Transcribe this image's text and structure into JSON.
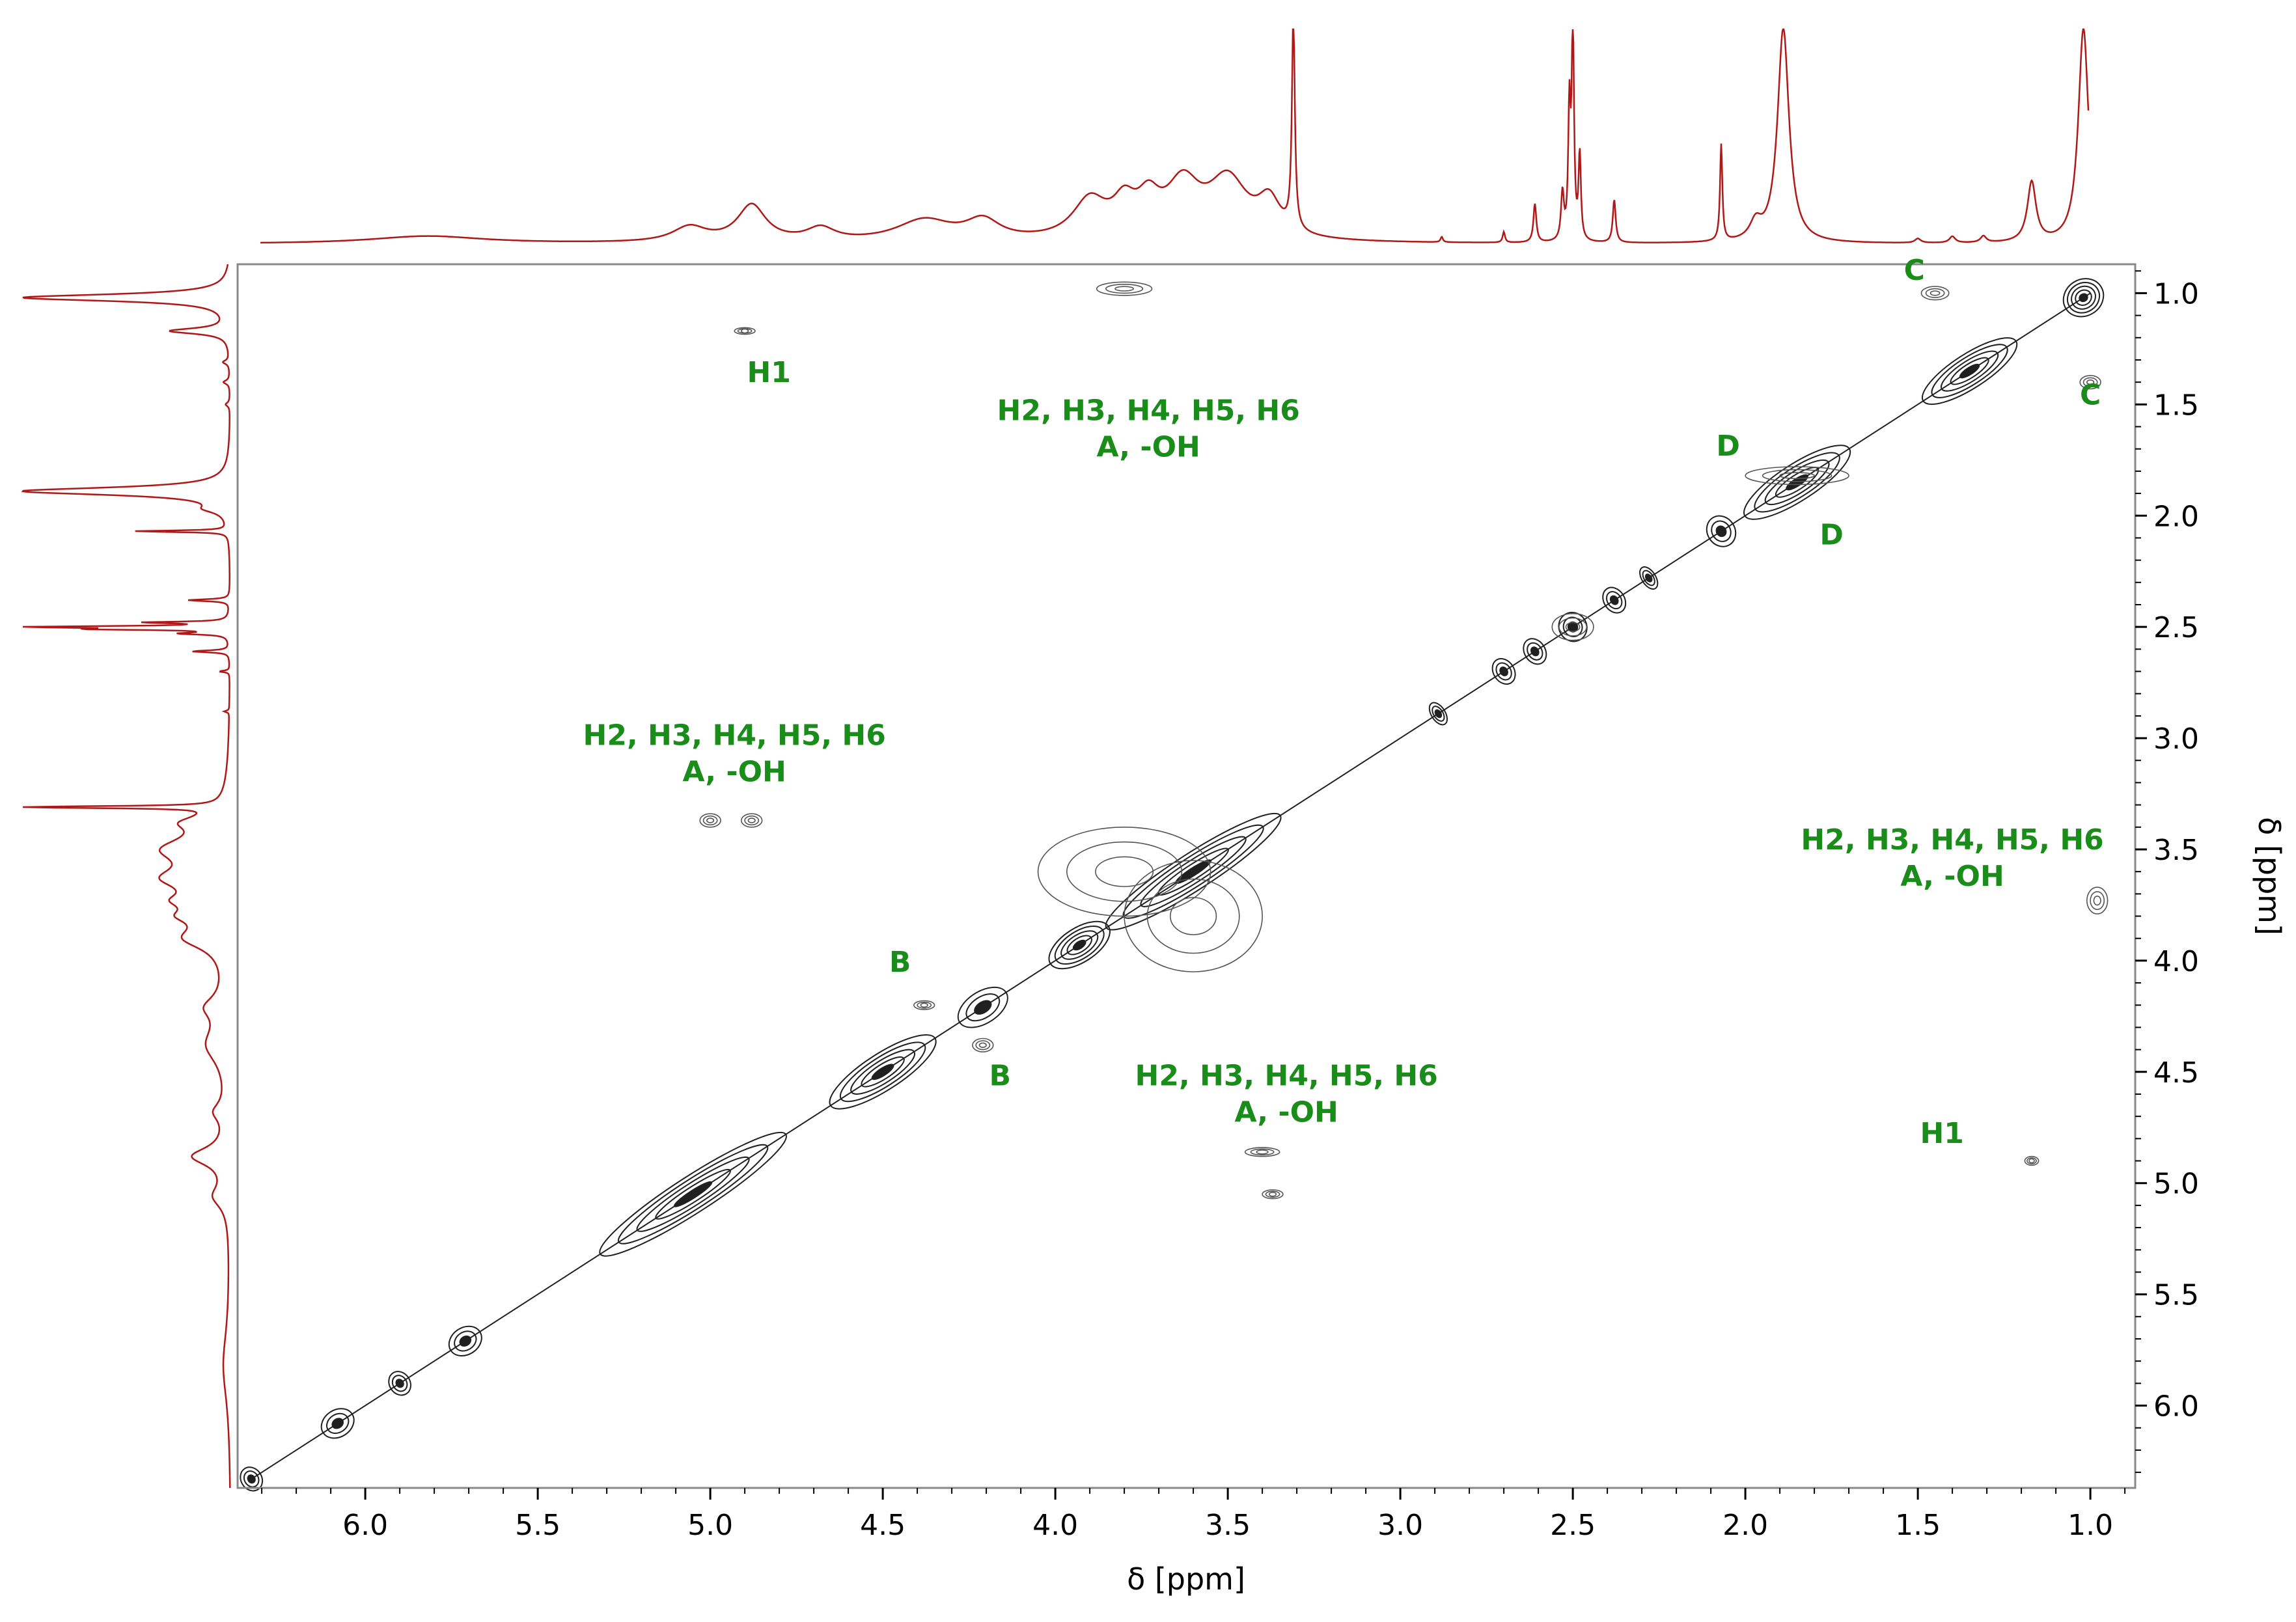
{
  "chart_data": {
    "type": "2D NMR contour plot (COSY-type) with 1D projections",
    "xlabel": "δ [ppm]",
    "ylabel": "δ [ppm]",
    "xlim": [
      6.37,
      0.87
    ],
    "ylim": [
      0.87,
      6.37
    ],
    "x_ticks": [
      "6.0",
      "5.5",
      "5.0",
      "4.5",
      "4.0",
      "3.5",
      "3.0",
      "2.5",
      "2.0",
      "1.5",
      "1.0"
    ],
    "y_ticks": [
      "1.0",
      "1.5",
      "2.0",
      "2.5",
      "3.0",
      "3.5",
      "4.0",
      "4.5",
      "5.0",
      "5.5",
      "6.0"
    ],
    "colors": {
      "projection": "#b01818",
      "contour": "#202020",
      "annotation": "#1a8c1a"
    },
    "diagonal_range": [
      6.33,
      1.0
    ],
    "diagonal_peaks": [
      {
        "ppm": 6.33,
        "w": 0.03,
        "s": 0.5
      },
      {
        "ppm": 6.08,
        "w": 0.05,
        "s": 0.6
      },
      {
        "ppm": 5.9,
        "w": 0.03,
        "s": 0.5
      },
      {
        "ppm": 5.71,
        "w": 0.05,
        "s": 0.6
      },
      {
        "ppm": 5.05,
        "w": 0.32,
        "s": 1.0
      },
      {
        "ppm": 4.5,
        "w": 0.18,
        "s": 1.0
      },
      {
        "ppm": 4.21,
        "w": 0.08,
        "s": 0.8
      },
      {
        "ppm": 3.93,
        "w": 0.1,
        "s": 0.9
      },
      {
        "ppm": 3.6,
        "w": 0.3,
        "s": 1.0
      },
      {
        "ppm": 2.89,
        "w": 0.02,
        "s": 0.5
      },
      {
        "ppm": 2.7,
        "w": 0.03,
        "s": 0.6
      },
      {
        "ppm": 2.61,
        "w": 0.03,
        "s": 0.6
      },
      {
        "ppm": 2.5,
        "w": 0.04,
        "s": 0.7
      },
      {
        "ppm": 2.38,
        "w": 0.03,
        "s": 0.6
      },
      {
        "ppm": 2.28,
        "w": 0.02,
        "s": 0.5
      },
      {
        "ppm": 2.07,
        "w": 0.04,
        "s": 0.8
      },
      {
        "ppm": 1.85,
        "w": 0.18,
        "s": 1.0
      },
      {
        "ppm": 1.35,
        "w": 0.16,
        "s": 0.9
      },
      {
        "ppm": 1.02,
        "w": 0.06,
        "s": 1.0
      }
    ],
    "cross_peaks": [
      {
        "x": 3.8,
        "y": 0.98,
        "w": 0.08,
        "h": 0.03
      },
      {
        "x": 4.9,
        "y": 1.17,
        "w": 0.03,
        "h": 0.015
      },
      {
        "x": 5.0,
        "y": 3.37,
        "w": 0.03,
        "h": 0.03
      },
      {
        "x": 4.88,
        "y": 3.37,
        "w": 0.03,
        "h": 0.03
      },
      {
        "x": 4.38,
        "y": 4.2,
        "w": 0.03,
        "h": 0.02
      },
      {
        "x": 4.21,
        "y": 4.38,
        "w": 0.03,
        "h": 0.03
      },
      {
        "x": 3.4,
        "y": 4.86,
        "w": 0.05,
        "h": 0.02
      },
      {
        "x": 3.37,
        "y": 5.05,
        "w": 0.03,
        "h": 0.02
      },
      {
        "x": 3.6,
        "y": 3.8,
        "w": 0.2,
        "h": 0.25
      },
      {
        "x": 3.8,
        "y": 3.6,
        "w": 0.25,
        "h": 0.2
      },
      {
        "x": 2.5,
        "y": 2.5,
        "w": 0.06,
        "h": 0.06
      },
      {
        "x": 1.17,
        "y": 4.9,
        "w": 0.02,
        "h": 0.02
      },
      {
        "x": 0.98,
        "y": 3.73,
        "w": 0.03,
        "h": 0.06
      },
      {
        "x": 1.85,
        "y": 1.82,
        "w": 0.15,
        "h": 0.04
      },
      {
        "x": 1.45,
        "y": 1.0,
        "w": 0.04,
        "h": 0.03
      },
      {
        "x": 1.0,
        "y": 1.4,
        "w": 0.03,
        "h": 0.03
      }
    ],
    "projection_1d": {
      "peaks": [
        {
          "ppm": 5.82,
          "h": 0.035,
          "w": 0.2
        },
        {
          "ppm": 5.06,
          "h": 0.07,
          "w": 0.06
        },
        {
          "ppm": 4.88,
          "h": 0.17,
          "w": 0.05
        },
        {
          "ppm": 4.68,
          "h": 0.06,
          "w": 0.05
        },
        {
          "ppm": 4.38,
          "h": 0.1,
          "w": 0.1
        },
        {
          "ppm": 4.21,
          "h": 0.09,
          "w": 0.06
        },
        {
          "ppm": 3.9,
          "h": 0.18,
          "w": 0.06
        },
        {
          "ppm": 3.8,
          "h": 0.14,
          "w": 0.04
        },
        {
          "ppm": 3.73,
          "h": 0.15,
          "w": 0.04
        },
        {
          "ppm": 3.63,
          "h": 0.24,
          "w": 0.06
        },
        {
          "ppm": 3.5,
          "h": 0.27,
          "w": 0.07
        },
        {
          "ppm": 3.38,
          "h": 0.16,
          "w": 0.04
        },
        {
          "ppm": 3.31,
          "h": 1.0,
          "w": 0.005
        },
        {
          "ppm": 2.88,
          "h": 0.025,
          "w": 0.004
        },
        {
          "ppm": 2.7,
          "h": 0.05,
          "w": 0.004
        },
        {
          "ppm": 2.61,
          "h": 0.18,
          "w": 0.005
        },
        {
          "ppm": 2.53,
          "h": 0.22,
          "w": 0.005
        },
        {
          "ppm": 2.51,
          "h": 0.6,
          "w": 0.004
        },
        {
          "ppm": 2.5,
          "h": 1.0,
          "w": 0.004
        },
        {
          "ppm": 2.48,
          "h": 0.4,
          "w": 0.004
        },
        {
          "ppm": 2.38,
          "h": 0.2,
          "w": 0.005
        },
        {
          "ppm": 2.07,
          "h": 0.45,
          "w": 0.004
        },
        {
          "ppm": 1.97,
          "h": 0.08,
          "w": 0.02
        },
        {
          "ppm": 1.89,
          "h": 1.0,
          "w": 0.02
        },
        {
          "ppm": 1.5,
          "h": 0.02,
          "w": 0.01
        },
        {
          "ppm": 1.4,
          "h": 0.03,
          "w": 0.01
        },
        {
          "ppm": 1.31,
          "h": 0.03,
          "w": 0.01
        },
        {
          "ppm": 1.17,
          "h": 0.28,
          "w": 0.015
        },
        {
          "ppm": 1.02,
          "h": 1.0,
          "w": 0.018
        }
      ]
    },
    "annotations": [
      {
        "lines": [
          "C"
        ],
        "x": 1.51,
        "y": 0.94
      },
      {
        "lines": [
          "H1"
        ],
        "x": 4.83,
        "y": 1.4
      },
      {
        "lines": [
          "H2, H3, H4, H5, H6",
          "A, -OH"
        ],
        "x": 3.73,
        "y": 1.57
      },
      {
        "lines": [
          "C"
        ],
        "x": 1.0,
        "y": 1.5
      },
      {
        "lines": [
          "D"
        ],
        "x": 2.05,
        "y": 1.73
      },
      {
        "lines": [
          "D"
        ],
        "x": 1.75,
        "y": 2.13
      },
      {
        "lines": [
          "H2, H3, H4, H5, H6",
          "A, -OH"
        ],
        "x": 4.93,
        "y": 3.03
      },
      {
        "lines": [
          "H2, H3, H4, H5, H6",
          "A, -OH"
        ],
        "x": 1.4,
        "y": 3.5
      },
      {
        "lines": [
          "B"
        ],
        "x": 4.45,
        "y": 4.05
      },
      {
        "lines": [
          "B"
        ],
        "x": 4.16,
        "y": 4.56
      },
      {
        "lines": [
          "H2, H3, H4, H5, H6",
          "A, -OH"
        ],
        "x": 3.33,
        "y": 4.56
      },
      {
        "lines": [
          "H1"
        ],
        "x": 1.43,
        "y": 4.82
      }
    ]
  }
}
